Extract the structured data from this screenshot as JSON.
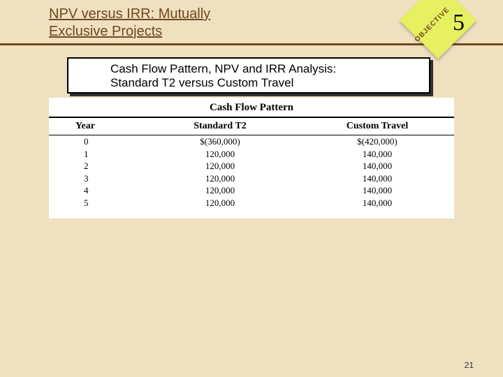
{
  "title": {
    "line1": "NPV versus IRR:  Mutually",
    "line2": "Exclusive Projects"
  },
  "objective": {
    "label": "OBJECTIVE",
    "number": "5"
  },
  "banner": {
    "line1": "Cash Flow Pattern, NPV and IRR Analysis:",
    "line2": "Standard T2 versus Custom Travel"
  },
  "table": {
    "caption": "Cash Flow Pattern",
    "headers": {
      "year": "Year",
      "std": "Standard T2",
      "cus": "Custom Travel"
    },
    "rows": [
      {
        "year": "0",
        "std": "$(360,000)",
        "cus": "$(420,000)"
      },
      {
        "year": "1",
        "std": "120,000",
        "cus": "140,000"
      },
      {
        "year": "2",
        "std": "120,000",
        "cus": "140,000"
      },
      {
        "year": "3",
        "std": "120,000",
        "cus": "140,000"
      },
      {
        "year": "4",
        "std": "120,000",
        "cus": "140,000"
      },
      {
        "year": "5",
        "std": "120,000",
        "cus": "140,000"
      }
    ]
  },
  "page_number": "21",
  "colors": {
    "background": "#efe0c0",
    "rule": "#704820",
    "badge": "#e6f060",
    "table_bg": "#ffffff"
  }
}
